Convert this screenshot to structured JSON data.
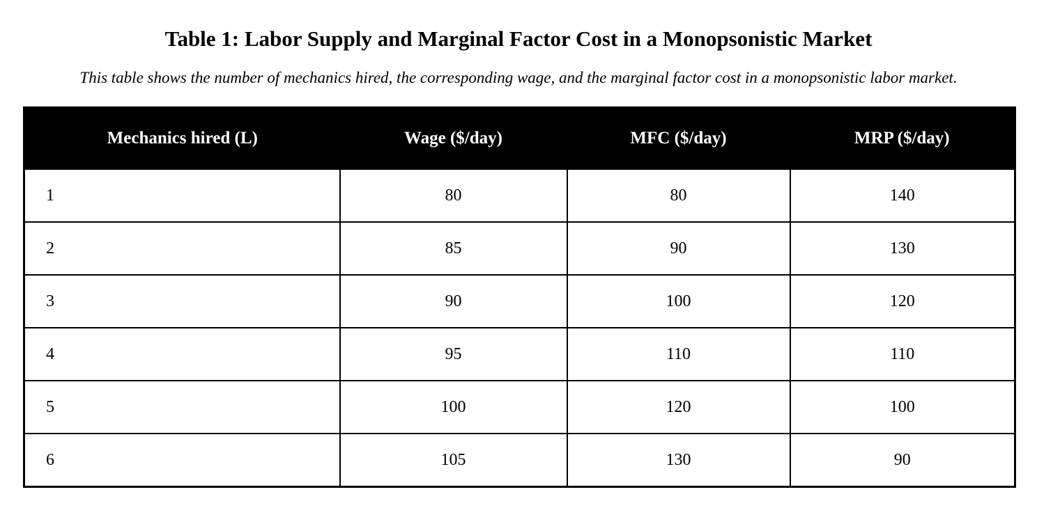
{
  "title": "Table 1: Labor Supply and Marginal Factor Cost in a Monopsonistic Market",
  "subtitle": "This table shows the number of mechanics hired, the corresponding wage, and the marginal factor cost in a monopsonistic labor market.",
  "chart_data": {
    "type": "table",
    "title": "Table 1: Labor Supply and Marginal Factor Cost in a Monopsonistic Market",
    "subtitle": "This table shows the number of mechanics hired, the corresponding wage, and the marginal factor cost in a monopsonistic labor market.",
    "columns": [
      "Mechanics hired (L)",
      "Wage ($/day)",
      "MFC ($/day)",
      "MRP ($/day)"
    ],
    "rows": [
      [
        "1",
        "80",
        "80",
        "140"
      ],
      [
        "2",
        "85",
        "90",
        "130"
      ],
      [
        "3",
        "90",
        "100",
        "120"
      ],
      [
        "4",
        "95",
        "110",
        "110"
      ],
      [
        "5",
        "100",
        "120",
        "100"
      ],
      [
        "6",
        "105",
        "130",
        "90"
      ]
    ],
    "header_background": "#000000",
    "header_text_color": "#ffffff",
    "border_color": "#000000"
  }
}
